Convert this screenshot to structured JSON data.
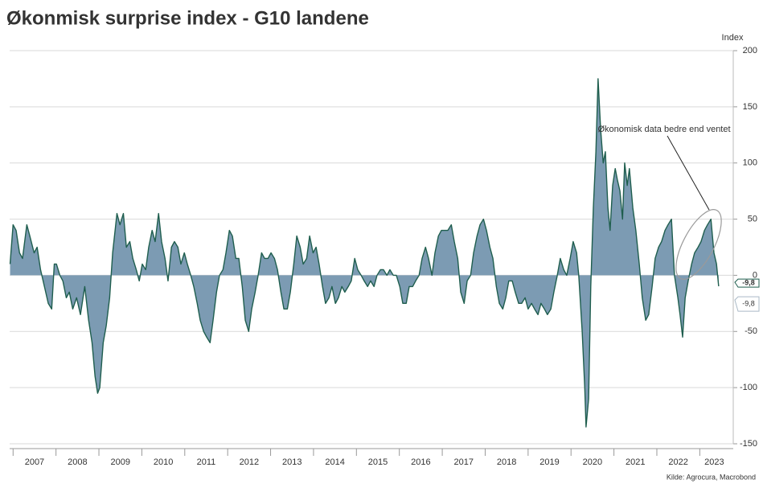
{
  "chart_data": {
    "type": "area",
    "title": "Økonmisk surprise index - G10 landene",
    "y_axis_label": "Index",
    "source": "Kilde: Agrocura, Macrobond",
    "annotation": "Økonomisk data bedre end ventet",
    "fill_color": "#7c9bb3",
    "line_color": "#1f5e4e",
    "grid": true,
    "xlim": [
      2006.92,
      2023.78
    ],
    "xticks": [
      2007,
      2008,
      2009,
      2010,
      2011,
      2012,
      2013,
      2014,
      2015,
      2016,
      2017,
      2018,
      2019,
      2020,
      2021,
      2022,
      2023
    ],
    "ylim": [
      -150,
      200
    ],
    "yticks": [
      -150,
      -100,
      -50,
      0,
      50,
      100,
      150,
      200
    ],
    "end_label": {
      "value": -9.8,
      "label": "-9,8"
    },
    "x": [
      2006.93,
      2007.0,
      2007.07,
      2007.15,
      2007.22,
      2007.32,
      2007.39,
      2007.49,
      2007.56,
      2007.64,
      2007.73,
      2007.82,
      2007.9,
      2007.96,
      2008.01,
      2008.09,
      2008.16,
      2008.24,
      2008.31,
      2008.39,
      2008.48,
      2008.57,
      2008.67,
      2008.76,
      2008.84,
      2008.91,
      2008.97,
      2009.02,
      2009.1,
      2009.17,
      2009.25,
      2009.32,
      2009.42,
      2009.49,
      2009.57,
      2009.64,
      2009.72,
      2009.79,
      2009.87,
      2009.94,
      2010.01,
      2010.09,
      2010.16,
      2010.24,
      2010.31,
      2010.39,
      2010.46,
      2010.54,
      2010.61,
      2010.69,
      2010.76,
      2010.84,
      2010.91,
      2010.99,
      2011.06,
      2011.14,
      2011.21,
      2011.29,
      2011.36,
      2011.44,
      2011.51,
      2011.59,
      2011.66,
      2011.74,
      2011.81,
      2011.89,
      2011.96,
      2012.04,
      2012.11,
      2012.19,
      2012.26,
      2012.34,
      2012.41,
      2012.49,
      2012.56,
      2012.64,
      2012.71,
      2012.79,
      2012.86,
      2012.94,
      2013.01,
      2013.09,
      2013.16,
      2013.24,
      2013.31,
      2013.39,
      2013.46,
      2013.54,
      2013.61,
      2013.69,
      2013.76,
      2013.84,
      2013.91,
      2013.99,
      2014.06,
      2014.13,
      2014.21,
      2014.28,
      2014.36,
      2014.43,
      2014.51,
      2014.58,
      2014.66,
      2014.73,
      2014.81,
      2014.88,
      2014.96,
      2015.03,
      2015.11,
      2015.18,
      2015.26,
      2015.33,
      2015.41,
      2015.48,
      2015.56,
      2015.63,
      2015.71,
      2015.78,
      2015.86,
      2015.93,
      2016.01,
      2016.08,
      2016.16,
      2016.23,
      2016.31,
      2016.38,
      2016.46,
      2016.53,
      2016.61,
      2016.68,
      2016.76,
      2016.83,
      2016.91,
      2016.98,
      2017.06,
      2017.13,
      2017.21,
      2017.28,
      2017.36,
      2017.43,
      2017.51,
      2017.58,
      2017.66,
      2017.73,
      2017.81,
      2017.88,
      2017.96,
      2018.03,
      2018.11,
      2018.18,
      2018.26,
      2018.33,
      2018.41,
      2018.48,
      2018.55,
      2018.63,
      2018.7,
      2018.78,
      2018.85,
      2018.93,
      2019.0,
      2019.08,
      2019.15,
      2019.23,
      2019.3,
      2019.38,
      2019.45,
      2019.53,
      2019.6,
      2019.68,
      2019.75,
      2019.83,
      2019.9,
      2019.98,
      2020.05,
      2020.13,
      2020.18,
      2020.26,
      2020.32,
      2020.35,
      2020.41,
      2020.46,
      2020.52,
      2020.58,
      2020.63,
      2020.69,
      2020.75,
      2020.8,
      2020.86,
      2020.91,
      2020.97,
      2021.03,
      2021.08,
      2021.14,
      2021.2,
      2021.25,
      2021.31,
      2021.36,
      2021.44,
      2021.51,
      2021.59,
      2021.66,
      2021.74,
      2021.81,
      2021.89,
      2021.96,
      2022.04,
      2022.11,
      2022.19,
      2022.26,
      2022.34,
      2022.41,
      2022.49,
      2022.54,
      2022.6,
      2022.66,
      2022.73,
      2022.81,
      2022.88,
      2022.96,
      2023.03,
      2023.11,
      2023.18,
      2023.26,
      2023.33,
      2023.39,
      2023.44
    ],
    "values": [
      10,
      45,
      40,
      20,
      15,
      45,
      35,
      20,
      25,
      5,
      -10,
      -25,
      -30,
      10,
      10,
      0,
      -5,
      -20,
      -15,
      -30,
      -20,
      -35,
      -10,
      -40,
      -60,
      -90,
      -105,
      -100,
      -60,
      -45,
      -20,
      20,
      55,
      45,
      55,
      25,
      30,
      15,
      5,
      -5,
      10,
      5,
      25,
      40,
      30,
      55,
      30,
      15,
      -5,
      25,
      30,
      25,
      10,
      20,
      10,
      0,
      -10,
      -25,
      -40,
      -50,
      -55,
      -60,
      -40,
      -15,
      0,
      5,
      20,
      40,
      35,
      15,
      15,
      -10,
      -40,
      -50,
      -30,
      -15,
      0,
      20,
      15,
      15,
      20,
      15,
      5,
      -15,
      -30,
      -30,
      -15,
      10,
      35,
      25,
      10,
      15,
      35,
      20,
      25,
      10,
      -10,
      -25,
      -20,
      -10,
      -25,
      -20,
      -10,
      -15,
      -10,
      -5,
      15,
      5,
      0,
      -5,
      -10,
      -5,
      -10,
      0,
      5,
      5,
      0,
      5,
      0,
      0,
      -10,
      -25,
      -25,
      -10,
      -10,
      -5,
      0,
      15,
      25,
      15,
      0,
      20,
      35,
      40,
      40,
      40,
      45,
      30,
      15,
      -15,
      -25,
      -5,
      0,
      20,
      35,
      45,
      50,
      40,
      25,
      15,
      -10,
      -25,
      -30,
      -20,
      -5,
      -5,
      -15,
      -25,
      -25,
      -20,
      -30,
      -25,
      -30,
      -35,
      -25,
      -30,
      -35,
      -30,
      -15,
      0,
      15,
      5,
      0,
      15,
      30,
      20,
      0,
      -50,
      -100,
      -135,
      -110,
      -10,
      60,
      110,
      175,
      130,
      100,
      110,
      60,
      40,
      80,
      95,
      85,
      75,
      50,
      100,
      80,
      95,
      60,
      40,
      10,
      -20,
      -40,
      -35,
      -10,
      15,
      25,
      30,
      40,
      45,
      50,
      0,
      -20,
      -35,
      -55,
      -20,
      -5,
      10,
      20,
      25,
      30,
      40,
      45,
      50,
      20,
      10,
      -9.8
    ]
  }
}
